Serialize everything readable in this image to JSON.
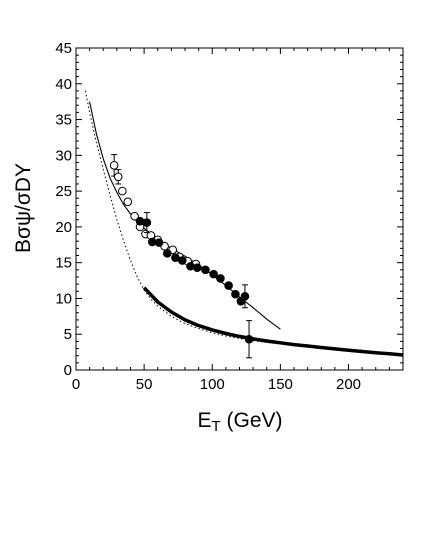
{
  "chart_data": {
    "type": "scatter",
    "xlabel": {
      "main": "E",
      "sub": "T",
      "rest": " (GeV)"
    },
    "ylabel": "Bσψ/σDY",
    "xlim": [
      0,
      240
    ],
    "ylim": [
      0,
      45
    ],
    "xticks": [
      0,
      50,
      100,
      150,
      200
    ],
    "yticks": [
      0,
      5,
      10,
      15,
      20,
      25,
      30,
      35,
      40,
      45
    ],
    "grid": false,
    "series": [
      {
        "marker": "open-circle",
        "color": "#000000",
        "x": [
          28,
          31,
          34,
          38,
          43,
          47,
          51,
          55,
          60,
          65,
          71,
          76,
          82,
          88
        ],
        "y": [
          28.6,
          27.0,
          25.0,
          23.5,
          21.5,
          20.0,
          19.0,
          18.8,
          18.2,
          17.3,
          16.8,
          15.8,
          15.2,
          14.8
        ],
        "yerr": [
          1.5,
          1.0,
          0,
          0,
          0,
          0,
          0,
          0,
          0,
          0,
          0,
          0,
          0,
          0
        ]
      },
      {
        "marker": "filled-circle",
        "color": "#000000",
        "x": [
          47,
          52,
          56,
          61,
          67,
          73,
          78,
          84,
          89,
          95,
          101,
          106,
          112,
          117,
          121,
          124,
          127
        ],
        "y": [
          20.8,
          20.6,
          17.9,
          17.8,
          16.3,
          15.7,
          15.3,
          14.5,
          14.3,
          14.0,
          13.4,
          12.8,
          11.8,
          10.6,
          9.6,
          10.3,
          4.3
        ],
        "yerr": [
          0,
          1.4,
          0,
          0,
          0,
          0,
          0,
          0,
          0,
          0,
          0,
          0,
          0,
          0,
          0,
          1.6,
          2.6
        ]
      },
      {
        "style": "solid-thin",
        "color": "#000000",
        "x": [
          10,
          15,
          20,
          25,
          30,
          35,
          40,
          45,
          50,
          60,
          70,
          80,
          90,
          100,
          110,
          120,
          130,
          140,
          150
        ],
        "y": [
          37.5,
          33.0,
          29.5,
          26.8,
          24.8,
          23.1,
          21.8,
          20.7,
          19.8,
          18.3,
          17.0,
          15.9,
          14.7,
          13.3,
          11.8,
          10.2,
          8.7,
          7.1,
          5.7
        ]
      },
      {
        "style": "solid-thick",
        "color": "#000000",
        "x": [
          50,
          60,
          70,
          80,
          90,
          100,
          110,
          120,
          130,
          140,
          150,
          160,
          170,
          180,
          190,
          200,
          210,
          220,
          230,
          240
        ],
        "y": [
          11.5,
          9.5,
          8.1,
          7.0,
          6.2,
          5.6,
          5.1,
          4.7,
          4.35,
          4.05,
          3.8,
          3.55,
          3.35,
          3.15,
          2.95,
          2.75,
          2.58,
          2.42,
          2.26,
          2.1
        ]
      },
      {
        "style": "dotted",
        "color": "#000000",
        "x": [
          7,
          10,
          15,
          20,
          25,
          30,
          35,
          40,
          45,
          50,
          55,
          60,
          70,
          80,
          90,
          100,
          110,
          120,
          130,
          140,
          150,
          160,
          170,
          180,
          190,
          200,
          210
        ],
        "y": [
          39.0,
          36.0,
          31.8,
          28.0,
          24.4,
          21.0,
          18.0,
          15.3,
          13.0,
          11.2,
          9.9,
          8.9,
          7.5,
          6.5,
          5.8,
          5.2,
          4.75,
          4.4,
          4.1,
          3.85,
          3.65,
          3.45,
          3.3,
          3.15,
          3.0,
          2.9,
          2.75
        ]
      }
    ]
  }
}
